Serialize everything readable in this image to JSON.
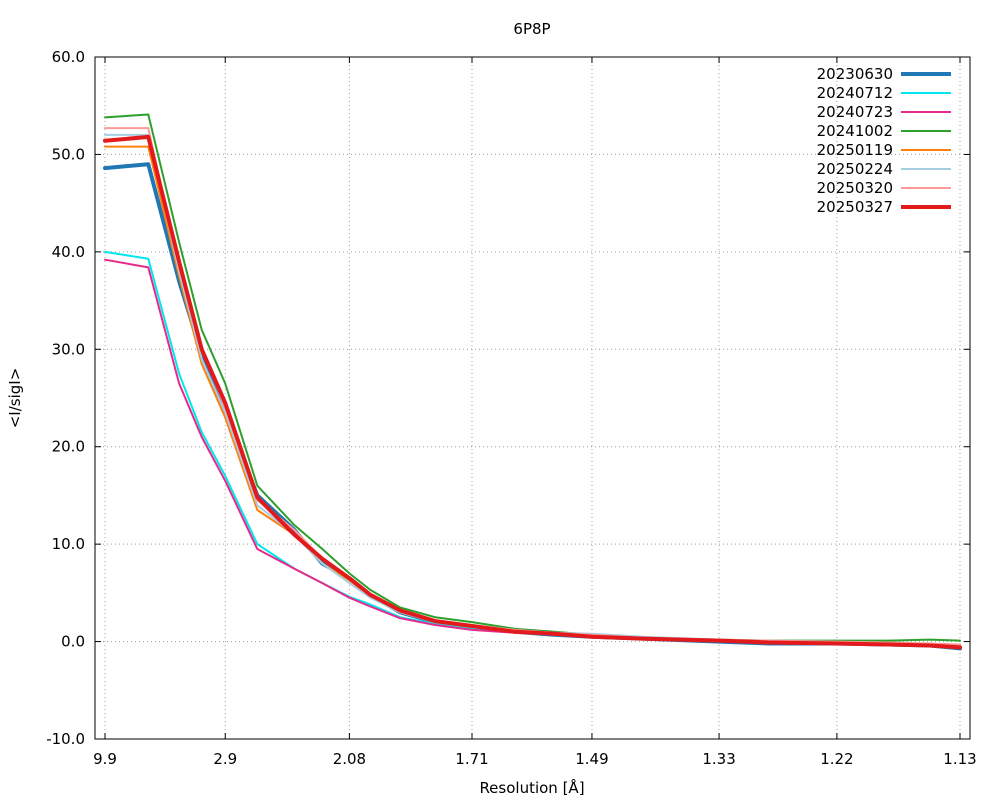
{
  "chart_data": {
    "type": "line",
    "title": "6P8P",
    "xlabel": "Resolution [Å]",
    "ylabel": "<I/sigI>",
    "ylim": [
      -10,
      60
    ],
    "yticks": [
      -10,
      0,
      10,
      20,
      30,
      40,
      50,
      60
    ],
    "ytick_labels": [
      "-10.0",
      "0.0",
      "10.0",
      "20.0",
      "30.0",
      "40.0",
      "50.0",
      "60.0"
    ],
    "x_scale": "inverse-squared resolution (1/d²), ticks labeled in Å",
    "xlim": [
      9.9,
      1.13
    ],
    "xticks": [
      9.9,
      2.9,
      2.08,
      1.71,
      1.49,
      1.33,
      1.22,
      1.13
    ],
    "xtick_labels": [
      "9.9",
      "2.9",
      "2.08",
      "1.71",
      "1.49",
      "1.33",
      "1.22",
      "1.13"
    ],
    "grid": true,
    "legend_position": "top-right",
    "series": [
      {
        "name": "20230630",
        "color": "#1f77b4",
        "width": 4,
        "x": [
          9.9,
          4.5,
          3.6,
          3.2,
          2.9,
          2.6,
          2.35,
          2.2,
          2.08,
          2.0,
          1.9,
          1.8,
          1.71,
          1.62,
          1.55,
          1.49,
          1.42,
          1.33,
          1.28,
          1.22,
          1.18,
          1.15,
          1.13
        ],
        "values": [
          48.6,
          49.0,
          37.0,
          29.5,
          23.5,
          15.0,
          11.5,
          8.0,
          6.5,
          4.8,
          3.0,
          2.0,
          1.5,
          1.0,
          0.7,
          0.5,
          0.3,
          0.0,
          -0.2,
          -0.2,
          -0.3,
          -0.4,
          -0.7
        ]
      },
      {
        "name": "20240712",
        "color": "#00e5ee",
        "width": 2,
        "x": [
          9.9,
          4.5,
          3.6,
          3.2,
          2.9,
          2.6,
          2.35,
          2.2,
          2.08,
          2.0,
          1.9,
          1.8,
          1.71,
          1.62,
          1.55,
          1.49,
          1.42,
          1.33,
          1.28,
          1.22,
          1.18,
          1.15,
          1.13
        ],
        "values": [
          40.0,
          39.3,
          27.5,
          21.5,
          17.0,
          10.0,
          7.5,
          6.0,
          4.6,
          3.8,
          2.5,
          1.8,
          1.3,
          1.0,
          0.8,
          0.6,
          0.3,
          0.1,
          -0.2,
          -0.2,
          -0.3,
          -0.4,
          -0.5
        ]
      },
      {
        "name": "20240723",
        "color": "#e7298a",
        "width": 2,
        "x": [
          9.9,
          4.5,
          3.6,
          3.2,
          2.9,
          2.6,
          2.35,
          2.2,
          2.08,
          2.0,
          1.9,
          1.8,
          1.71,
          1.62,
          1.55,
          1.49,
          1.42,
          1.33,
          1.28,
          1.22,
          1.18,
          1.15,
          1.13
        ],
        "values": [
          39.2,
          38.4,
          26.5,
          21.0,
          16.5,
          9.5,
          7.5,
          6.0,
          4.5,
          3.6,
          2.4,
          1.7,
          1.2,
          0.9,
          0.7,
          0.5,
          0.3,
          0.1,
          -0.2,
          -0.2,
          -0.3,
          -0.4,
          -0.5
        ]
      },
      {
        "name": "20241002",
        "color": "#2ca02c",
        "width": 2,
        "x": [
          9.9,
          4.5,
          3.6,
          3.2,
          2.9,
          2.6,
          2.35,
          2.2,
          2.08,
          2.0,
          1.9,
          1.8,
          1.71,
          1.62,
          1.55,
          1.49,
          1.42,
          1.33,
          1.28,
          1.22,
          1.18,
          1.15,
          1.13
        ],
        "values": [
          53.8,
          54.1,
          41.0,
          32.0,
          26.5,
          16.0,
          12.0,
          9.5,
          7.0,
          5.3,
          3.5,
          2.5,
          2.0,
          1.3,
          1.0,
          0.7,
          0.4,
          0.2,
          0.1,
          0.1,
          0.1,
          0.2,
          0.1
        ]
      },
      {
        "name": "20250119",
        "color": "#ff7f0e",
        "width": 2,
        "x": [
          9.9,
          4.5,
          3.6,
          3.2,
          2.9,
          2.6,
          2.35,
          2.2,
          2.08,
          2.0,
          1.9,
          1.8,
          1.71,
          1.62,
          1.55,
          1.49,
          1.42,
          1.33,
          1.28,
          1.22,
          1.18,
          1.15,
          1.13
        ],
        "values": [
          50.8,
          50.8,
          37.5,
          28.5,
          23.0,
          13.5,
          11.0,
          8.0,
          6.3,
          4.6,
          3.0,
          2.0,
          1.5,
          1.0,
          0.7,
          0.5,
          0.3,
          0.1,
          -0.1,
          -0.2,
          -0.2,
          -0.3,
          -0.4
        ]
      },
      {
        "name": "20250224",
        "color": "#a6cee3",
        "width": 2,
        "x": [
          9.9,
          4.5,
          3.6,
          3.2,
          2.9,
          2.6,
          2.35,
          2.2,
          2.08,
          2.0,
          1.9,
          1.8,
          1.71,
          1.62,
          1.55,
          1.49,
          1.42,
          1.33,
          1.28,
          1.22,
          1.18,
          1.15,
          1.13
        ],
        "values": [
          52.0,
          52.0,
          38.0,
          29.0,
          23.5,
          14.0,
          11.0,
          8.0,
          6.0,
          4.5,
          3.0,
          2.0,
          1.5,
          1.0,
          0.9,
          0.8,
          0.5,
          0.2,
          0.0,
          -0.1,
          -0.2,
          -0.3,
          -0.4
        ]
      },
      {
        "name": "20250320",
        "color": "#fb9a99",
        "width": 2,
        "x": [
          9.9,
          4.5,
          3.6,
          3.2,
          2.9,
          2.6,
          2.35,
          2.2,
          2.08,
          2.0,
          1.9,
          1.8,
          1.71,
          1.62,
          1.55,
          1.49,
          1.42,
          1.33,
          1.28,
          1.22,
          1.18,
          1.15,
          1.13
        ],
        "values": [
          52.7,
          52.7,
          38.5,
          30.0,
          24.0,
          14.5,
          11.5,
          8.5,
          6.5,
          4.8,
          3.2,
          2.2,
          1.7,
          1.2,
          0.9,
          0.7,
          0.4,
          0.2,
          0.1,
          0.0,
          -0.1,
          -0.2,
          -0.3
        ]
      },
      {
        "name": "20250327",
        "color": "#e31a1c",
        "width": 4,
        "x": [
          9.9,
          4.5,
          3.6,
          3.2,
          2.9,
          2.6,
          2.35,
          2.2,
          2.08,
          2.0,
          1.9,
          1.8,
          1.71,
          1.62,
          1.55,
          1.49,
          1.42,
          1.33,
          1.28,
          1.22,
          1.18,
          1.15,
          1.13
        ],
        "values": [
          51.4,
          51.8,
          39.0,
          30.0,
          24.5,
          14.8,
          11.0,
          8.5,
          6.5,
          4.8,
          3.2,
          2.1,
          1.6,
          1.0,
          0.8,
          0.5,
          0.3,
          0.1,
          -0.1,
          -0.2,
          -0.3,
          -0.4,
          -0.6
        ]
      }
    ]
  }
}
